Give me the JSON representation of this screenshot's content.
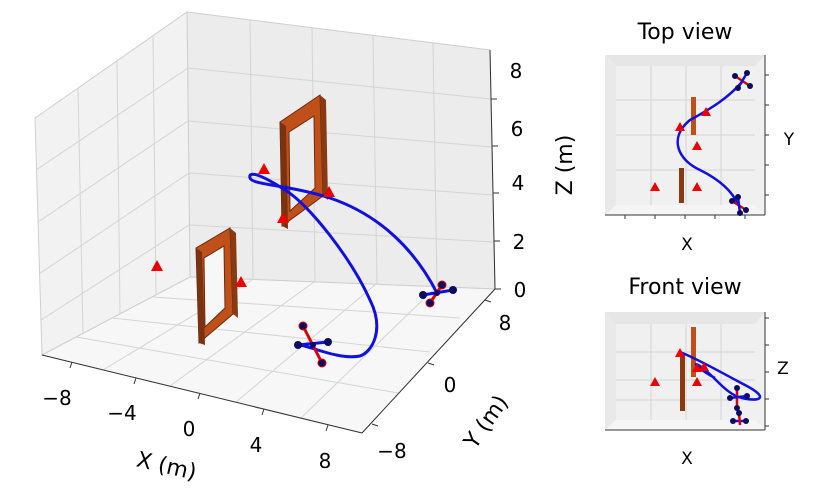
{
  "chart_data": [
    {
      "type": "scatter",
      "view": "3d",
      "xlabel": "X (m)",
      "ylabel": "Y (m)",
      "zlabel": "Z (m)",
      "xticks": [
        "−8",
        "−4",
        "0",
        "4",
        "8"
      ],
      "yticks": [
        "−8",
        "0",
        "8"
      ],
      "zticks": [
        "0",
        "2",
        "4",
        "6",
        "8"
      ],
      "xlim": [
        -10,
        10
      ],
      "ylim": [
        -10,
        10
      ],
      "zlim": [
        0,
        8
      ],
      "grid": true,
      "series": [
        {
          "kind": "trajectory",
          "color": "#0000ee",
          "points": [
            [
              6.5,
              -6.5,
              0.5
            ],
            [
              5,
              -7.5,
              0.9
            ],
            [
              3,
              -8.5,
              1.5
            ],
            [
              1,
              -8.5,
              2.5
            ],
            [
              -1,
              -7,
              3.4
            ],
            [
              -2.5,
              -4,
              3.8
            ],
            [
              -2.5,
              -1,
              3.8
            ],
            [
              -1,
              2,
              3.4
            ],
            [
              1.5,
              4.5,
              2.6
            ],
            [
              4.5,
              6.5,
              1.7
            ],
            [
              7,
              7.5,
              0.9
            ],
            [
              8,
              7,
              0.7
            ]
          ]
        },
        {
          "kind": "gates",
          "color": "#c0501a",
          "points": [
            [
              -3,
              -3,
              0
            ],
            [
              0,
              3,
              2.5
            ]
          ]
        },
        {
          "kind": "obstacles",
          "color": "#ee0000",
          "points": [
            [
              -8,
              -3,
              0.5
            ],
            [
              -1,
              -4,
              1
            ],
            [
              -2,
              2,
              2
            ],
            [
              -1,
              -1,
              4
            ],
            [
              1,
              2,
              4
            ],
            [
              3,
              2,
              3
            ]
          ]
        },
        {
          "kind": "drones",
          "color": "#000099",
          "points": [
            [
              -1,
              -7,
              0.3
            ],
            [
              8,
              7,
              0.3
            ]
          ]
        }
      ]
    },
    {
      "type": "scatter",
      "title": "Top view",
      "xlabel": "X",
      "ylabel": "Y",
      "grid": true
    },
    {
      "type": "scatter",
      "title": "Front view",
      "xlabel": "X",
      "ylabel": "Z",
      "grid": true
    }
  ]
}
